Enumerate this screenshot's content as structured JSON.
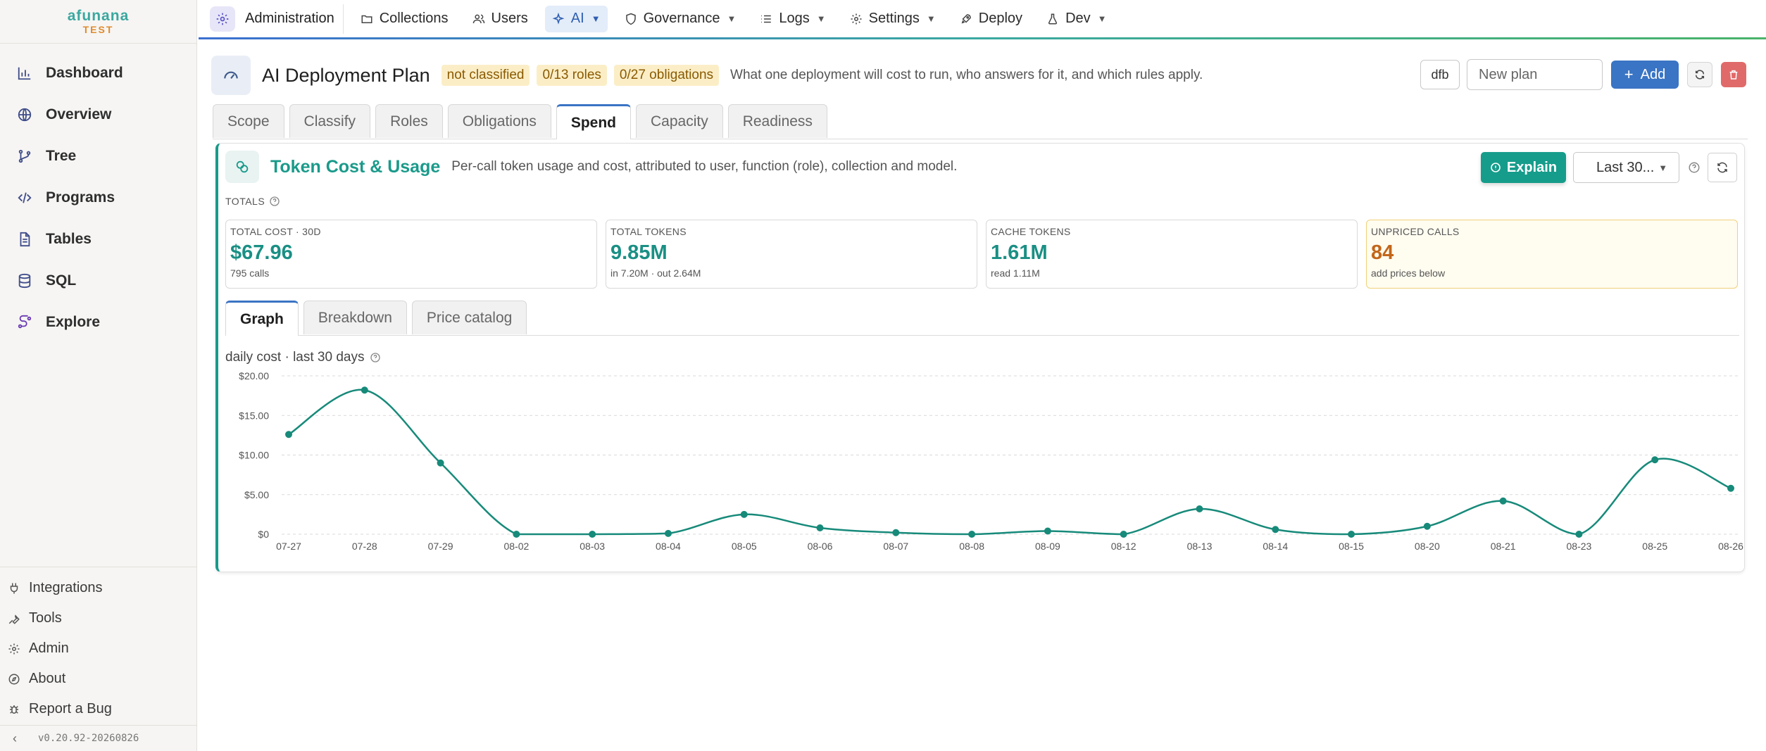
{
  "brand": {
    "name": "afunana",
    "env": "TEST"
  },
  "sidebar": {
    "items": [
      {
        "label": "Dashboard",
        "icon": "bar-chart-icon"
      },
      {
        "label": "Overview",
        "icon": "globe-icon"
      },
      {
        "label": "Tree",
        "icon": "git-branch-icon"
      },
      {
        "label": "Programs",
        "icon": "code-icon"
      },
      {
        "label": "Tables",
        "icon": "document-icon"
      },
      {
        "label": "SQL",
        "icon": "database-icon"
      },
      {
        "label": "Explore",
        "icon": "workflow-icon"
      }
    ],
    "bottom_items": [
      {
        "label": "Integrations",
        "icon": "plug-icon"
      },
      {
        "label": "Tools",
        "icon": "wrench-icon"
      },
      {
        "label": "Admin",
        "icon": "gear-icon"
      },
      {
        "label": "About",
        "icon": "compass-icon"
      },
      {
        "label": "Report a Bug",
        "icon": "bug-icon"
      }
    ],
    "version": "v0.20.92-20260826"
  },
  "topnav": {
    "admin_label": "Administration",
    "items": [
      {
        "label": "Collections"
      },
      {
        "label": "Users"
      },
      {
        "label": "AI"
      },
      {
        "label": "Governance"
      },
      {
        "label": "Logs"
      },
      {
        "label": "Settings"
      },
      {
        "label": "Deploy"
      },
      {
        "label": "Dev"
      }
    ]
  },
  "header": {
    "title": "AI Deployment Plan",
    "chips": [
      "not classified",
      "0/13 roles",
      "0/27 obligations"
    ],
    "description": "What one deployment will cost to run, who answers for it, and which rules apply.",
    "owner_label": "dfb",
    "plan_placeholder": "New plan",
    "add_label": "Add"
  },
  "tabs": [
    "Scope",
    "Classify",
    "Roles",
    "Obligations",
    "Spend",
    "Capacity",
    "Readiness"
  ],
  "panel": {
    "title": "Token Cost & Usage",
    "description": "Per-call token usage and cost, attributed to user, function (role), collection and model.",
    "explain_label": "Explain",
    "range_label": "Last 30...",
    "totals_label": "TOTALS",
    "cards": [
      {
        "label": "TOTAL COST · 30D",
        "value": "$67.96",
        "sub": "795 calls"
      },
      {
        "label": "TOTAL TOKENS",
        "value": "9.85M",
        "sub": "in 7.20M · out 2.64M"
      },
      {
        "label": "CACHE TOKENS",
        "value": "1.61M",
        "sub": "read 1.11M"
      },
      {
        "label": "UNPRICED CALLS",
        "value": "84",
        "sub": "add prices below"
      }
    ],
    "subtabs": [
      "Graph",
      "Breakdown",
      "Price catalog"
    ],
    "chart_label": "daily cost · last 30 days"
  },
  "colors": {
    "accent": "#1a9a8a",
    "primary": "#3a74c4",
    "warning": "#c2661a",
    "danger": "#e06a6a"
  },
  "chart_data": {
    "type": "line",
    "x": [
      "07-27",
      "07-28",
      "07-29",
      "08-02",
      "08-03",
      "08-04",
      "08-05",
      "08-06",
      "08-07",
      "08-08",
      "08-09",
      "08-12",
      "08-13",
      "08-14",
      "08-15",
      "08-20",
      "08-21",
      "08-23",
      "08-25",
      "08-26"
    ],
    "values": [
      12.6,
      18.2,
      9.0,
      0.0,
      0.0,
      0.1,
      2.5,
      0.8,
      0.2,
      0.0,
      0.4,
      0.0,
      3.2,
      0.6,
      0.0,
      1.0,
      4.2,
      0.0,
      9.4,
      5.8
    ],
    "ylim": [
      0,
      20
    ],
    "yticks": [
      "$0",
      "$5.00",
      "$10.00",
      "$15.00",
      "$20.00"
    ],
    "ytick_values": [
      0,
      5,
      10,
      15,
      20
    ],
    "grid": true,
    "color": "#178a7a"
  }
}
